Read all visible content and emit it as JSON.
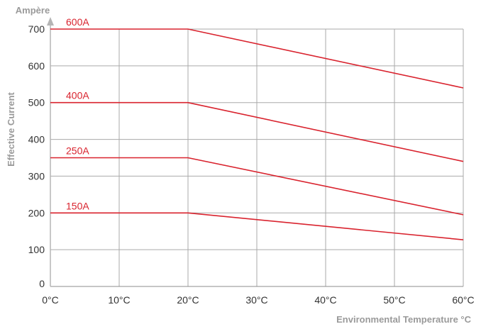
{
  "chart_data": {
    "type": "line",
    "xlabel": "Environmental Temperature °C",
    "ylabel": "Effective Current",
    "yunit": "Ampère",
    "xlim": [
      0,
      60
    ],
    "ylim": [
      0,
      700
    ],
    "xticks": [
      0,
      10,
      20,
      30,
      40,
      50,
      60
    ],
    "xtick_labels": [
      "0°C",
      "10°C",
      "20°C",
      "30°C",
      "40°C",
      "50°C",
      "60°C"
    ],
    "yticks": [
      0,
      100,
      200,
      300,
      400,
      500,
      600,
      700
    ],
    "ytick_labels": [
      "0",
      "100",
      "200",
      "300",
      "400",
      "500",
      "600",
      "700"
    ],
    "grid": true,
    "colors": {
      "series": "#d9232e",
      "grid": "#aaaaaa",
      "axis_title": "#9a9a9a",
      "axis_arrow": "#b5b5b5"
    },
    "series": [
      {
        "name": "600A",
        "points": [
          [
            0,
            700
          ],
          [
            20,
            700
          ],
          [
            60,
            540
          ]
        ]
      },
      {
        "name": "400A",
        "points": [
          [
            0,
            500
          ],
          [
            20,
            500
          ],
          [
            60,
            340
          ]
        ]
      },
      {
        "name": "250A",
        "points": [
          [
            0,
            350
          ],
          [
            20,
            350
          ],
          [
            60,
            195
          ]
        ]
      },
      {
        "name": "150A",
        "points": [
          [
            0,
            200
          ],
          [
            20,
            200
          ],
          [
            60,
            127
          ]
        ]
      }
    ]
  }
}
